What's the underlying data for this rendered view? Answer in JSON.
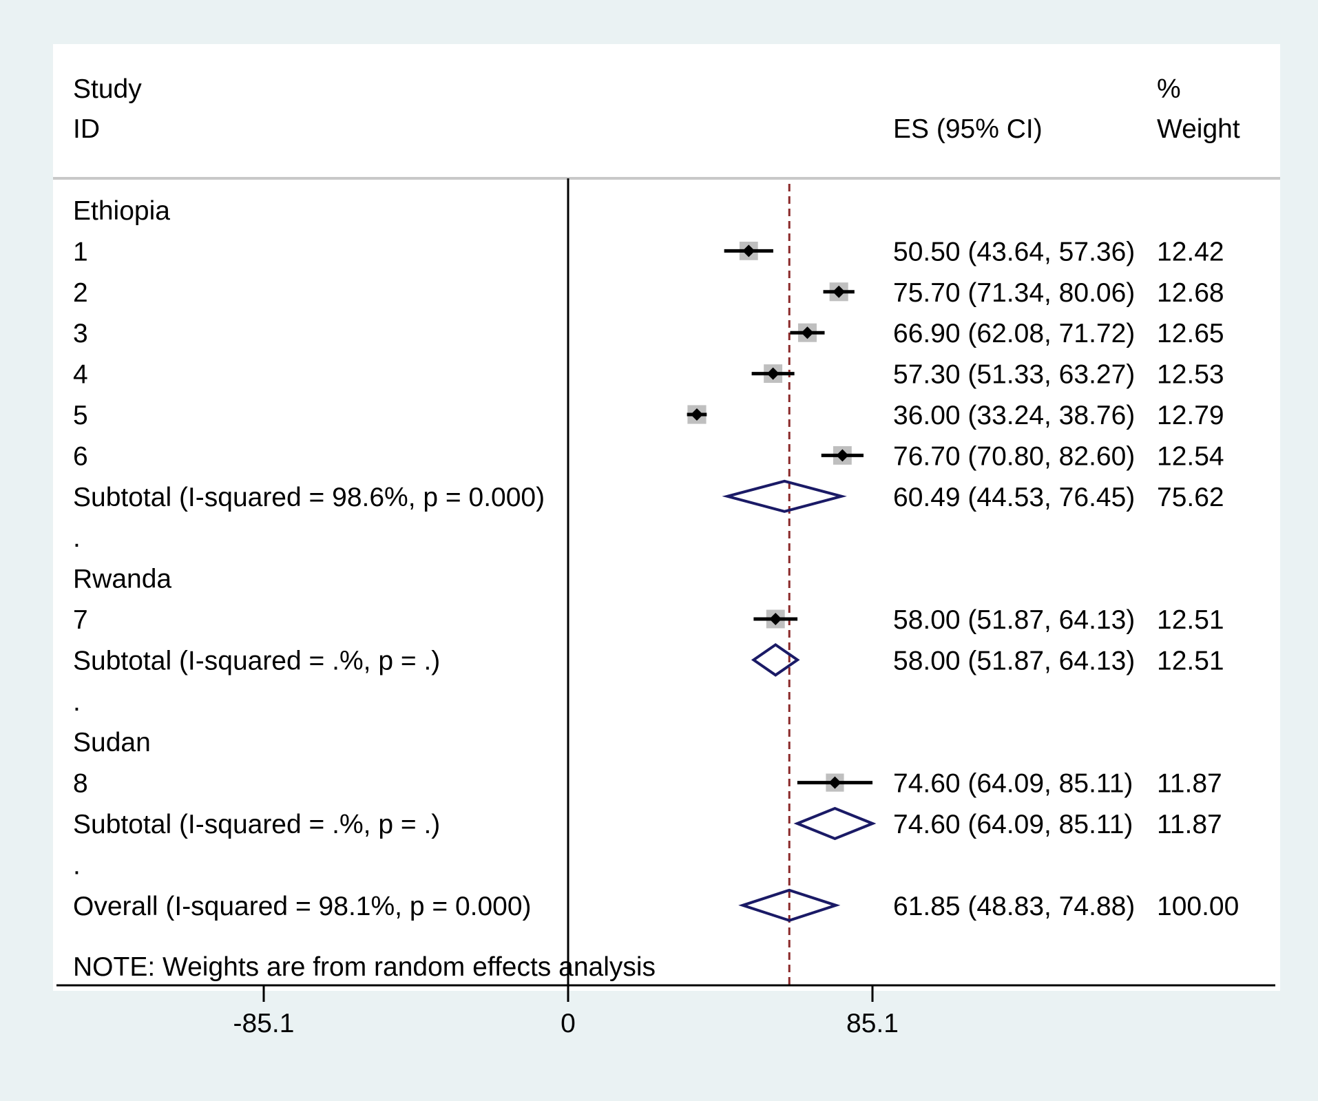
{
  "header": {
    "study_label": "Study",
    "id_label": "ID",
    "es_label": "ES (95% CI)",
    "percent_label": "%",
    "weight_label": "Weight"
  },
  "note": "NOTE: Weights are from random effects analysis",
  "colors": {
    "background": "#eaf2f3",
    "plot_region": "#ffffff",
    "diamond": "#1a1a66",
    "reference_line": "#8b2a2a",
    "weight_box": "#bfbfbf"
  },
  "chart_data": {
    "type": "forest",
    "x_ticks": [
      {
        "value": -85.1,
        "label": "-85.1"
      },
      {
        "value": 0,
        "label": "0"
      },
      {
        "value": 85.1,
        "label": "85.1"
      }
    ],
    "xlim": [
      -145,
      200
    ],
    "null_line": 0,
    "overall_line": 61.85,
    "rows": [
      {
        "type": "group",
        "label": "Ethiopia"
      },
      {
        "type": "study",
        "label": "1",
        "es": 50.5,
        "lo": 43.64,
        "hi": 57.36,
        "weight": 12.42,
        "text": "50.50 (43.64, 57.36)",
        "weight_text": "12.42"
      },
      {
        "type": "study",
        "label": "2",
        "es": 75.7,
        "lo": 71.34,
        "hi": 80.06,
        "weight": 12.68,
        "text": "75.70 (71.34, 80.06)",
        "weight_text": "12.68"
      },
      {
        "type": "study",
        "label": "3",
        "es": 66.9,
        "lo": 62.08,
        "hi": 71.72,
        "weight": 12.65,
        "text": "66.90 (62.08, 71.72)",
        "weight_text": "12.65"
      },
      {
        "type": "study",
        "label": "4",
        "es": 57.3,
        "lo": 51.33,
        "hi": 63.27,
        "weight": 12.53,
        "text": "57.30 (51.33, 63.27)",
        "weight_text": "12.53"
      },
      {
        "type": "study",
        "label": "5",
        "es": 36.0,
        "lo": 33.24,
        "hi": 38.76,
        "weight": 12.79,
        "text": "36.00 (33.24, 38.76)",
        "weight_text": "12.79"
      },
      {
        "type": "study",
        "label": "6",
        "es": 76.7,
        "lo": 70.8,
        "hi": 82.6,
        "weight": 12.54,
        "text": "76.70 (70.80, 82.60)",
        "weight_text": "12.54"
      },
      {
        "type": "subtotal",
        "label": "Subtotal  (I-squared = 98.6%, p = 0.000)",
        "es": 60.49,
        "lo": 44.53,
        "hi": 76.45,
        "weight": 75.62,
        "text": "60.49 (44.53, 76.45)",
        "weight_text": "75.62"
      },
      {
        "type": "separator",
        "label": "."
      },
      {
        "type": "group",
        "label": "Rwanda"
      },
      {
        "type": "study",
        "label": "7",
        "es": 58.0,
        "lo": 51.87,
        "hi": 64.13,
        "weight": 12.51,
        "text": "58.00 (51.87, 64.13)",
        "weight_text": "12.51"
      },
      {
        "type": "subtotal",
        "label": "Subtotal  (I-squared = .%, p = .)",
        "es": 58.0,
        "lo": 51.87,
        "hi": 64.13,
        "weight": 12.51,
        "text": "58.00 (51.87, 64.13)",
        "weight_text": "12.51"
      },
      {
        "type": "separator",
        "label": "."
      },
      {
        "type": "group",
        "label": "Sudan"
      },
      {
        "type": "study",
        "label": "8",
        "es": 74.6,
        "lo": 64.09,
        "hi": 85.11,
        "weight": 11.87,
        "text": "74.60 (64.09, 85.11)",
        "weight_text": "11.87"
      },
      {
        "type": "subtotal",
        "label": "Subtotal  (I-squared = .%, p = .)",
        "es": 74.6,
        "lo": 64.09,
        "hi": 85.11,
        "weight": 11.87,
        "text": "74.60 (64.09, 85.11)",
        "weight_text": "11.87"
      },
      {
        "type": "separator",
        "label": "."
      },
      {
        "type": "overall",
        "label": "Overall  (I-squared = 98.1%, p = 0.000)",
        "es": 61.85,
        "lo": 48.83,
        "hi": 74.88,
        "weight": 100.0,
        "text": "61.85 (48.83, 74.88)",
        "weight_text": "100.00"
      }
    ]
  }
}
